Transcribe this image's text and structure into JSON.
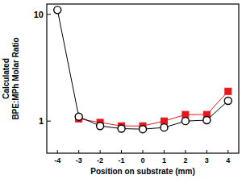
{
  "chart_data": {
    "type": "line",
    "log": "y",
    "x_label": "Position on substrate (mm)",
    "y_label": "Calculated\nBPE:MPh Molar Ratio",
    "x": [
      -4,
      -3,
      -2,
      -1,
      0,
      1,
      2,
      3,
      4
    ],
    "series": [
      {
        "color": "#e8161b",
        "marker": "square",
        "line_style": "solid",
        "values": [
          null,
          1.05,
          0.97,
          0.9,
          0.9,
          1.0,
          1.15,
          1.15,
          1.9
        ]
      },
      {
        "color": "#000000",
        "marker": "open-circle",
        "line_style": "solid",
        "values": [
          11,
          1.1,
          0.9,
          0.85,
          0.84,
          0.87,
          1.0,
          1.02,
          1.55
        ]
      }
    ],
    "xlim": [
      -4.5,
      4.5
    ],
    "xticks": [
      -4,
      -3,
      -2,
      -1,
      0,
      1,
      2,
      3,
      4
    ],
    "ylim": [
      0.5,
      12.5
    ],
    "yticks": [
      1,
      10
    ]
  }
}
